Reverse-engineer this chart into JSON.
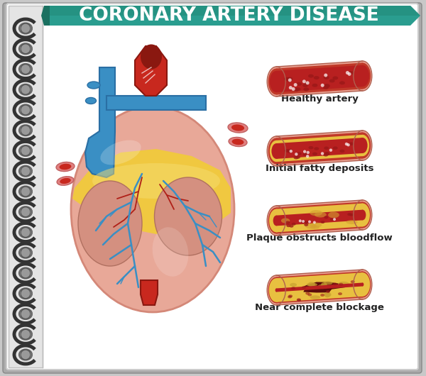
{
  "title": "CORONARY ARTERY DISEASE",
  "title_color": "#ffffff",
  "title_bg": "#2a9d8f",
  "title_bg_dark": "#1a7060",
  "title_bg_mid": "#228877",
  "bg_outer": "#c8c8c8",
  "bg_notebook": "#ffffff",
  "bg_strip": "#e8e8e8",
  "spiral_dark": "#333333",
  "spiral_mid": "#666666",
  "labels": [
    "Healthy artery",
    "Initial fatty deposits",
    "Plaque obstructs bloodflow",
    "Near complete blockage"
  ],
  "label_color": "#222222",
  "label_fontsize": 9.5,
  "label_fontweight": "bold",
  "heart_pink": "#e8a898",
  "heart_pink_dark": "#d48878",
  "heart_yellow": "#f0c840",
  "heart_yellow_light": "#f5dc70",
  "heart_blue": "#3a8fc4",
  "heart_blue_dark": "#2a6fa4",
  "heart_red": "#c8281e",
  "heart_red_dark": "#8a1810",
  "heart_red_mid": "#b02018",
  "art_outer": "#e8a090",
  "art_wall": "#c03828",
  "art_blood": "#b82020",
  "art_fat": "#e8c040",
  "art_clot": "#6a1010"
}
